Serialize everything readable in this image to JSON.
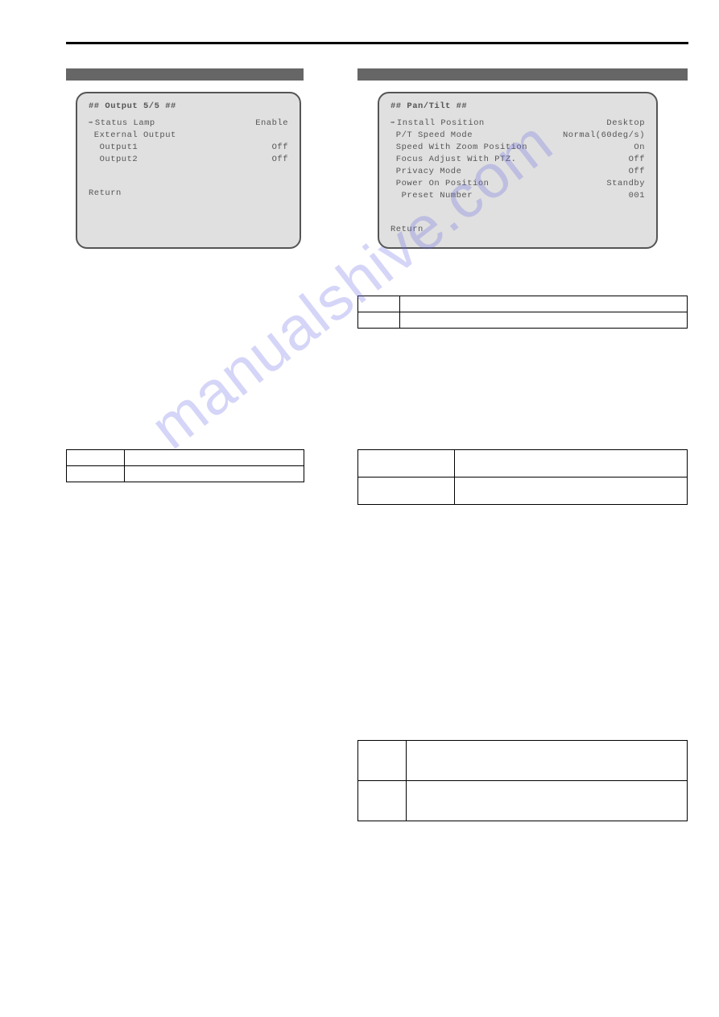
{
  "watermark": "manualshive.com",
  "leftPanel": {
    "title": "## Output 5/5 ##",
    "rows": [
      {
        "label": "Status Lamp",
        "value": "Enable",
        "arrow": true
      },
      {
        "label": "External Output",
        "value": ""
      },
      {
        "label": " Output1",
        "value": "Off"
      },
      {
        "label": " Output2",
        "value": "Off"
      }
    ],
    "return": "Return"
  },
  "rightPanel": {
    "title": "## Pan/Tilt ##",
    "rows": [
      {
        "label": "Install Position",
        "value": "Desktop",
        "arrow": true
      },
      {
        "label": "P/T Speed Mode",
        "value": "Normal(60deg/s)"
      },
      {
        "label": "Speed With Zoom Position",
        "value": "On"
      },
      {
        "label": "Focus Adjust With PTZ.",
        "value": "Off"
      },
      {
        "label": "Privacy Mode",
        "value": "Off"
      },
      {
        "label": "Power On Position",
        "value": "Standby"
      },
      {
        "label": " Preset Number",
        "value": "001"
      }
    ],
    "return": "Return"
  },
  "tables": {
    "a": {
      "cols": 2,
      "rows": 2
    },
    "b": {
      "cols": 2,
      "rows": 2
    },
    "c": {
      "cols": 2,
      "rows": 2
    },
    "d": {
      "cols": 2,
      "rows": 2
    }
  }
}
